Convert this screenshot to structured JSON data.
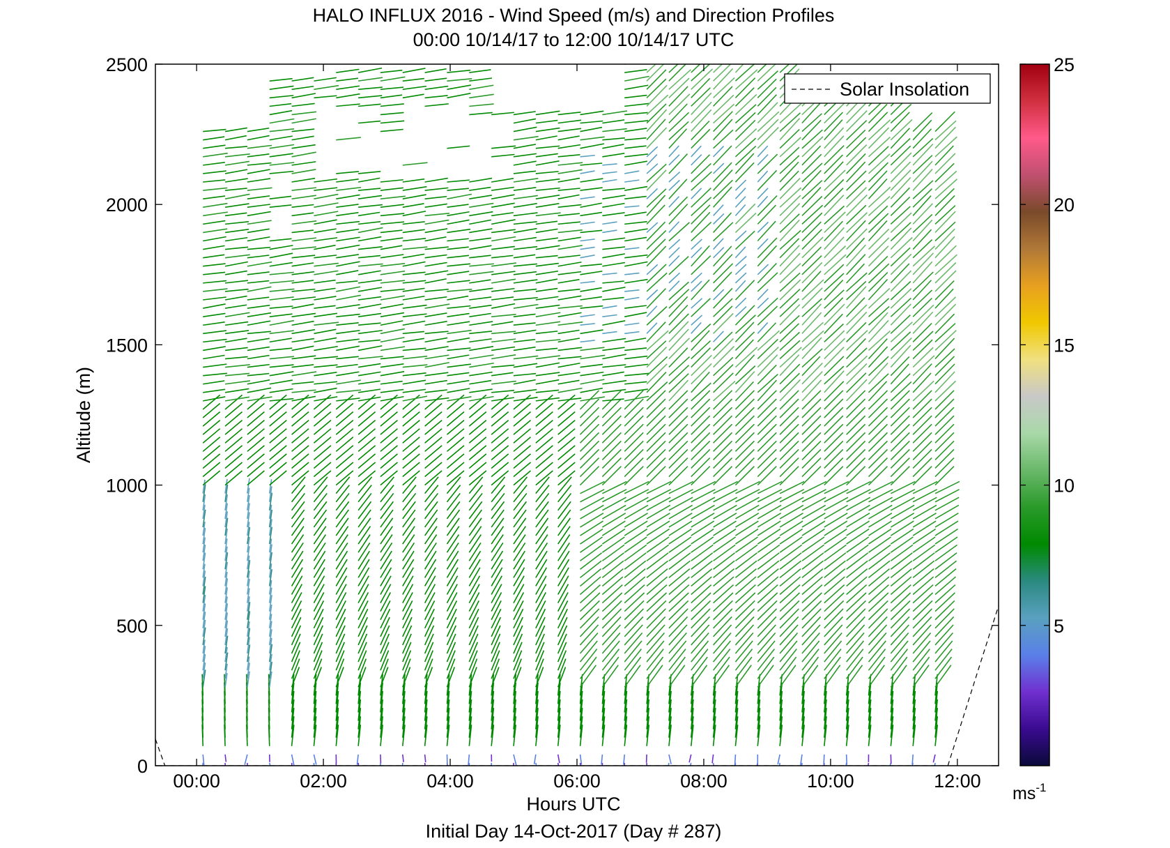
{
  "chart_data": {
    "type": "quiver",
    "title": "HALO INFLUX 2016 - Wind Speed (m/s) and Direction Profiles",
    "subtitle": "00:00 10/14/17 to 12:00 10/14/17  UTC",
    "xlabel": "Hours UTC",
    "ylabel": "Altitude (m)",
    "footer": "Initial Day 14-Oct-2017 (Day # 287)",
    "x_ticks": [
      "00:00",
      "02:00",
      "04:00",
      "06:00",
      "08:00",
      "10:00",
      "12:00"
    ],
    "x_tick_hours": [
      0,
      2,
      4,
      6,
      8,
      10,
      12
    ],
    "xlim_hours": [
      -0.65,
      12.65
    ],
    "y_ticks": [
      0,
      500,
      1000,
      1500,
      2000,
      2500
    ],
    "ylim": [
      0,
      2500
    ],
    "legend": {
      "label": "Solar Insolation",
      "placement": "top-right"
    },
    "colorbar": {
      "ticks": [
        5,
        10,
        15,
        20,
        25
      ],
      "range": [
        0,
        25
      ],
      "unit_base": "ms",
      "unit_exp": "-1",
      "colors": [
        "#0a0a3a",
        "#3a0a90",
        "#7030d0",
        "#5a80e8",
        "#5aa0c0",
        "#2a8a80",
        "#008a00",
        "#2a9a2a",
        "#6ab86a",
        "#a8d8a8",
        "#c8c8c8",
        "#f0e080",
        "#f0c800",
        "#e8a020",
        "#b07838",
        "#7a4a2a",
        "#c05070",
        "#ff5a8a",
        "#d03040",
        "#a00010"
      ]
    },
    "profiles_hours": [
      0.1,
      0.45,
      0.8,
      1.15,
      1.5,
      1.85,
      2.2,
      2.55,
      2.9,
      3.25,
      3.6,
      3.95,
      4.3,
      4.65,
      5.0,
      5.35,
      5.7,
      6.05,
      6.4,
      6.75,
      7.1,
      7.45,
      7.8,
      8.15,
      8.5,
      8.85,
      9.2,
      9.55,
      9.9,
      10.25,
      10.6,
      10.95,
      11.3,
      11.65
    ],
    "altitude_step_m": 30,
    "wind_regimes": [
      {
        "hours": "0-1",
        "altitude_m": "0-1000",
        "direction": "southerly",
        "speed_ms": "4-8"
      },
      {
        "hours": "0-6",
        "altitude_m": "1200-2100",
        "direction": "westerly",
        "speed_ms": "7-9"
      },
      {
        "hours": "6-12",
        "altitude_m": "500-1000",
        "direction": "south-westerly",
        "speed_ms": "9-10"
      },
      {
        "hours": "6-12",
        "altitude_m": "1000-2300",
        "direction": "south-westerly",
        "speed_ms": "8-10"
      },
      {
        "hours": "0-12",
        "altitude_m": "0-60",
        "direction": "northerly",
        "speed_ms": "2-4"
      }
    ],
    "solar_insolation": {
      "x_hours": [
        -0.65,
        -0.5,
        11.85,
        12.65
      ],
      "y_m": [
        95,
        0,
        0,
        570
      ]
    }
  }
}
